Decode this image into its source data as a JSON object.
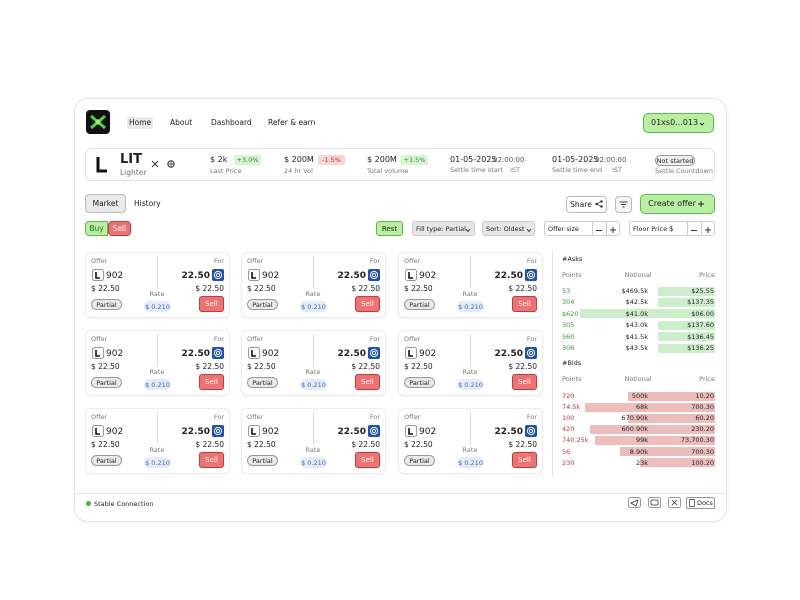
{
  "nav": {
    "items": [
      "Home",
      "About",
      "Dashboard",
      "Refer & earn"
    ],
    "wallet": "01xs0...013"
  },
  "ticker": {
    "symbol": "LIT",
    "name": "Lighter",
    "stats": [
      {
        "value": "$ 2k",
        "change": "+3.0%",
        "label": "Last Price"
      },
      {
        "value": "$ 200M",
        "change": "-1.5%",
        "label": "24 hr Vol"
      },
      {
        "value": "$ 200M",
        "change": "+1.5%",
        "label": "Total volume"
      }
    ],
    "settle": [
      {
        "date": "01-05-2025",
        "time": "02:00:00",
        "label": "Settle time start",
        "tz": "IST"
      },
      {
        "date": "01-05-2025",
        "time": "02:00:00",
        "label": "Settle time end",
        "tz": "IST"
      }
    ],
    "status": {
      "badge": "Not started",
      "label": "Settle Countdown"
    }
  },
  "tabs": [
    "Market",
    "History"
  ],
  "actions": {
    "share": "Share",
    "create": "Create offer"
  },
  "side": [
    "Buy",
    "Sell"
  ],
  "filters": {
    "rest": "Rest",
    "fill": "Fill type: Partial",
    "sort": "Sort: Oldest",
    "size": "Offer size",
    "floor": "Floor Price",
    "currency": "$"
  },
  "offers": [
    {
      "offer_label": "Offer",
      "amount": "902",
      "price": "$ 22.50",
      "fill": "Partial",
      "for_label": "For",
      "for_amount": "22.50",
      "for_price": "$ 22.50",
      "rate_label": "Rate",
      "rate": "$ 0.210",
      "action": "Sell"
    },
    {
      "offer_label": "Offer",
      "amount": "902",
      "price": "$ 22.50",
      "fill": "Partial",
      "for_label": "For",
      "for_amount": "22.50",
      "for_price": "$ 22.50",
      "rate_label": "Rate",
      "rate": "$ 0.210",
      "action": "Sell"
    },
    {
      "offer_label": "Offer",
      "amount": "902",
      "price": "$ 22.50",
      "fill": "Partial",
      "for_label": "For",
      "for_amount": "22.50",
      "for_price": "$ 22.50",
      "rate_label": "Rate",
      "rate": "$ 0.210",
      "action": "Sell"
    },
    {
      "offer_label": "Offer",
      "amount": "902",
      "price": "$ 22.50",
      "fill": "Partial",
      "for_label": "For",
      "for_amount": "22.50",
      "for_price": "$ 22.50",
      "rate_label": "Rate",
      "rate": "$ 0.210",
      "action": "Sell"
    },
    {
      "offer_label": "Offer",
      "amount": "902",
      "price": "$ 22.50",
      "fill": "Partial",
      "for_label": "For",
      "for_amount": "22.50",
      "for_price": "$ 22.50",
      "rate_label": "Rate",
      "rate": "$ 0.210",
      "action": "Sell"
    },
    {
      "offer_label": "Offer",
      "amount": "902",
      "price": "$ 22.50",
      "fill": "Partial",
      "for_label": "For",
      "for_amount": "22.50",
      "for_price": "$ 22.50",
      "rate_label": "Rate",
      "rate": "$ 0.210",
      "action": "Sell"
    },
    {
      "offer_label": "Offer",
      "amount": "902",
      "price": "$ 22.50",
      "fill": "Partial",
      "for_label": "For",
      "for_amount": "22.50",
      "for_price": "$ 22.50",
      "rate_label": "Rate",
      "rate": "$ 0.210",
      "action": "Sell"
    },
    {
      "offer_label": "Offer",
      "amount": "902",
      "price": "$ 22.50",
      "fill": "Partial",
      "for_label": "For",
      "for_amount": "22.50",
      "for_price": "$ 22.50",
      "rate_label": "Rate",
      "rate": "$ 0.210",
      "action": "Sell"
    },
    {
      "offer_label": "Offer",
      "amount": "902",
      "price": "$ 22.50",
      "fill": "Partial",
      "for_label": "For",
      "for_amount": "22.50",
      "for_price": "$ 22.50",
      "rate_label": "Rate",
      "rate": "$ 0.210",
      "action": "Sell"
    }
  ],
  "orderbook": {
    "asks": {
      "title": "#Asks",
      "columns": [
        "Points",
        "Notional",
        "Price"
      ],
      "rows": [
        [
          "53",
          "$469.5k",
          "$25.55"
        ],
        [
          "304",
          "$42.5k",
          "$137.35"
        ],
        [
          "$620",
          "$41.0k",
          "$06.00"
        ],
        [
          "305",
          "$43.0k",
          "$137.60"
        ],
        [
          "560",
          "$41.5k",
          "$136.45"
        ],
        [
          "306",
          "$43.5k",
          "$136.25"
        ]
      ]
    },
    "bids": {
      "title": "#Bids",
      "columns": [
        "Points",
        "Notional",
        "Price"
      ],
      "rows": [
        [
          "720",
          "500k",
          "10.20"
        ],
        [
          "74.5k",
          "68k",
          "700.30"
        ],
        [
          "100",
          "670.90k",
          "60.20"
        ],
        [
          "420",
          "600.90k",
          "230.20"
        ],
        [
          "740.25k",
          "99k",
          "73,700.30"
        ],
        [
          "56",
          "8.90k",
          "700.30"
        ],
        [
          "230",
          "23k",
          "100.20"
        ]
      ]
    }
  },
  "footer": {
    "status": "Stable Connection",
    "docs": "Docs"
  }
}
